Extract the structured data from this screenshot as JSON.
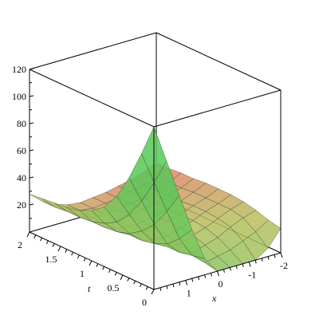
{
  "chart_data": {
    "type": "surface3d",
    "title": "",
    "axes": {
      "x": {
        "label": "x",
        "range": [
          -2,
          2
        ],
        "ticks": [
          {
            "value": 0,
            "label": "0"
          },
          {
            "value": -1,
            "label": "-1"
          },
          {
            "value": -2,
            "label": "-2"
          },
          {
            "value": 1,
            "label": "1"
          }
        ]
      },
      "t": {
        "label": "t",
        "range": [
          0,
          2
        ],
        "ticks": [
          {
            "value": 0,
            "label": "0"
          },
          {
            "value": 0.5,
            "label": "0.5"
          },
          {
            "value": 1,
            "label": "1"
          },
          {
            "value": 1.5,
            "label": "1.5"
          },
          {
            "value": 2,
            "label": "2"
          }
        ]
      },
      "z": {
        "label": "",
        "range": [
          0,
          120
        ],
        "ticks": [
          {
            "value": 20,
            "label": "20"
          },
          {
            "value": 40,
            "label": "40"
          },
          {
            "value": 60,
            "label": "60"
          },
          {
            "value": 80,
            "label": "80"
          },
          {
            "value": 100,
            "label": "100"
          },
          {
            "value": 120,
            "label": "120"
          }
        ]
      }
    },
    "surface_grid": {
      "x": [
        2,
        1.6,
        1.2,
        0.8,
        0.4,
        0,
        -0.4,
        -0.8,
        -1.2,
        -1.6,
        -2
      ],
      "t": [
        0,
        0.2,
        0.4,
        0.6,
        0.8,
        1,
        1.2,
        1.4,
        1.6,
        1.8,
        2
      ],
      "z": [
        [
          120,
          92,
          64,
          36,
          12,
          0,
          0,
          0,
          0,
          6,
          18
        ],
        [
          96,
          72,
          48,
          25,
          10,
          2,
          4,
          6,
          10,
          14,
          20
        ],
        [
          74,
          54,
          34,
          17,
          8,
          5,
          8,
          11,
          16,
          20,
          23
        ],
        [
          56,
          40,
          25,
          13,
          8,
          7,
          11,
          14,
          18,
          22,
          25
        ],
        [
          44,
          30,
          19,
          11,
          9,
          9,
          12,
          15,
          19,
          22,
          26
        ],
        [
          37,
          25,
          16,
          11,
          10,
          10,
          13,
          15,
          19,
          22,
          26
        ],
        [
          33,
          22,
          15,
          11,
          10,
          11,
          13,
          15,
          18,
          22,
          26
        ],
        [
          31,
          21,
          15,
          11,
          10,
          11,
          13,
          15,
          18,
          21,
          25
        ],
        [
          30,
          21,
          15,
          11,
          11,
          11,
          13,
          15,
          17,
          21,
          25
        ],
        [
          29,
          20,
          15,
          12,
          11,
          12,
          13,
          15,
          17,
          20,
          24
        ],
        [
          28,
          20,
          15,
          12,
          11,
          12,
          13,
          15,
          17,
          20,
          24
        ]
      ]
    },
    "colormap": {
      "stops": [
        "#5ac85a",
        "#b8c060",
        "#e87a6a"
      ]
    },
    "legend": "none",
    "grid": false
  }
}
